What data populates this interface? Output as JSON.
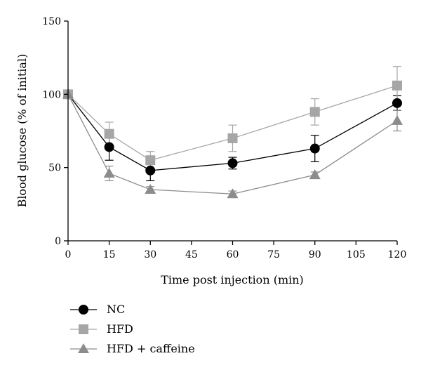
{
  "chart_data": {
    "type": "line",
    "xlabel": "Time post injection (min)",
    "ylabel": "Blood glucose (% of initial)",
    "xlim": [
      0,
      120
    ],
    "ylim": [
      0,
      150
    ],
    "xticks": [
      0,
      15,
      30,
      45,
      60,
      75,
      90,
      105,
      120
    ],
    "yticks": [
      0,
      50,
      100,
      150
    ],
    "grid": false,
    "legend_position": "bottom-left",
    "series": [
      {
        "name": "NC",
        "marker": "circle",
        "color": "#000000",
        "x": [
          0,
          15,
          30,
          60,
          90,
          120
        ],
        "y": [
          100,
          64,
          48,
          53,
          63,
          94
        ],
        "error": [
          0,
          9,
          7,
          4,
          9,
          5
        ]
      },
      {
        "name": "HFD",
        "marker": "square",
        "color": "#a6a6a6",
        "x": [
          0,
          15,
          30,
          60,
          90,
          120
        ],
        "y": [
          100,
          73,
          55,
          70,
          88,
          106
        ],
        "error": [
          0,
          8,
          6,
          9,
          9,
          13
        ]
      },
      {
        "name": "HFD + caffeine",
        "marker": "triangle",
        "color": "#8c8c8c",
        "x": [
          0,
          15,
          30,
          60,
          90,
          120
        ],
        "y": [
          100,
          46,
          35,
          32,
          45,
          82
        ],
        "error": [
          0,
          5,
          2,
          2,
          2,
          7
        ]
      }
    ]
  }
}
